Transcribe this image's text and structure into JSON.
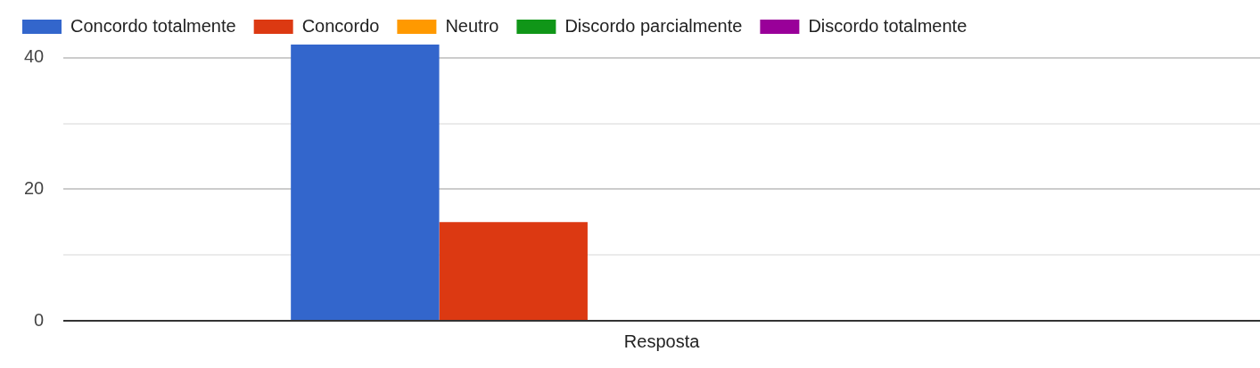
{
  "chart_data": {
    "type": "bar",
    "categories": [
      "Resposta"
    ],
    "series": [
      {
        "name": "Concordo totalmente",
        "color": "#3366cc",
        "values": [
          42
        ]
      },
      {
        "name": "Concordo",
        "color": "#dc3912",
        "values": [
          15
        ]
      },
      {
        "name": "Neutro",
        "color": "#ff9900",
        "values": [
          0
        ]
      },
      {
        "name": "Discordo parcialmente",
        "color": "#109618",
        "values": [
          0
        ]
      },
      {
        "name": "Discordo totalmente",
        "color": "#990099",
        "values": [
          0
        ]
      }
    ],
    "ylim": [
      0,
      42
    ],
    "yticks": [
      0,
      {
        "value": 10,
        "label": null
      },
      20,
      {
        "value": 30,
        "label": null
      },
      40
    ],
    "grid": "y",
    "legend": "top"
  }
}
